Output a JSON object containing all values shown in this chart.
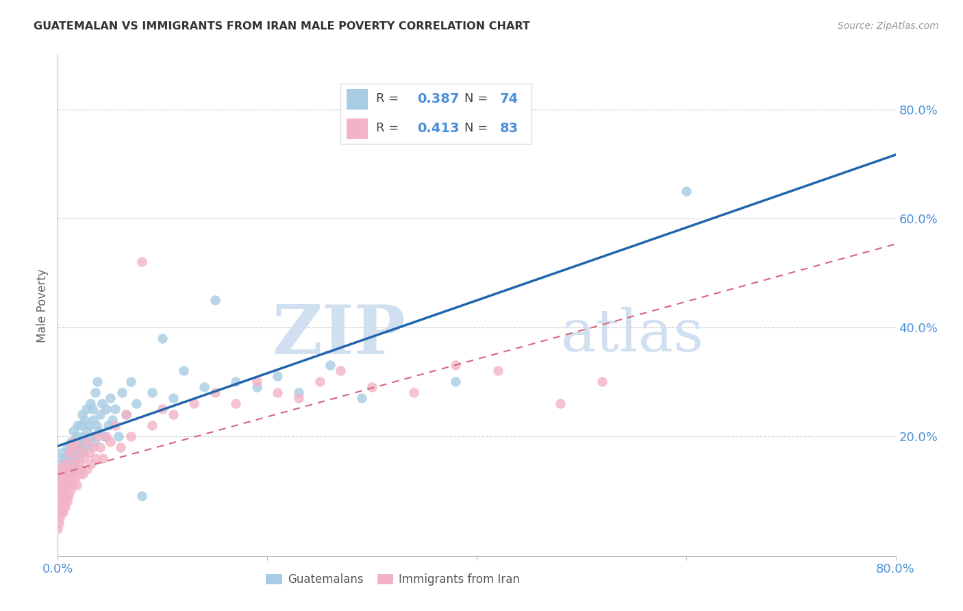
{
  "title": "GUATEMALAN VS IMMIGRANTS FROM IRAN MALE POVERTY CORRELATION CHART",
  "source": "Source: ZipAtlas.com",
  "ylabel": "Male Poverty",
  "y_tick_labels": [
    "80.0%",
    "60.0%",
    "40.0%",
    "20.0%"
  ],
  "y_tick_positions": [
    0.8,
    0.6,
    0.4,
    0.2
  ],
  "xlim": [
    0.0,
    0.8
  ],
  "ylim": [
    -0.02,
    0.9
  ],
  "watermark_zip": "ZIP",
  "watermark_atlas": "atlas",
  "legend_label1": "Guatemalans",
  "legend_label2": "Immigrants from Iran",
  "blue_color": "#a8cce4",
  "pink_color": "#f2b3c6",
  "line_blue": "#2166ac",
  "line_pink": "#d6647a",
  "title_color": "#333333",
  "tick_color": "#4a90d9",
  "grid_color": "#cccccc",
  "background_color": "#ffffff",
  "guatemalan_x": [
    0.001,
    0.002,
    0.003,
    0.004,
    0.005,
    0.005,
    0.006,
    0.007,
    0.008,
    0.009,
    0.01,
    0.01,
    0.011,
    0.012,
    0.013,
    0.013,
    0.014,
    0.015,
    0.015,
    0.016,
    0.017,
    0.018,
    0.018,
    0.019,
    0.02,
    0.02,
    0.021,
    0.022,
    0.023,
    0.023,
    0.024,
    0.025,
    0.026,
    0.027,
    0.028,
    0.029,
    0.03,
    0.031,
    0.032,
    0.033,
    0.034,
    0.035,
    0.036,
    0.037,
    0.038,
    0.039,
    0.04,
    0.042,
    0.044,
    0.046,
    0.048,
    0.05,
    0.052,
    0.055,
    0.058,
    0.061,
    0.065,
    0.07,
    0.075,
    0.08,
    0.09,
    0.1,
    0.11,
    0.12,
    0.14,
    0.15,
    0.17,
    0.19,
    0.21,
    0.23,
    0.26,
    0.29,
    0.38,
    0.6
  ],
  "guatemalan_y": [
    0.14,
    0.12,
    0.17,
    0.15,
    0.13,
    0.16,
    0.14,
    0.12,
    0.15,
    0.18,
    0.14,
    0.17,
    0.13,
    0.16,
    0.15,
    0.19,
    0.14,
    0.17,
    0.21,
    0.16,
    0.18,
    0.14,
    0.2,
    0.22,
    0.16,
    0.19,
    0.18,
    0.22,
    0.17,
    0.24,
    0.2,
    0.23,
    0.19,
    0.25,
    0.21,
    0.18,
    0.22,
    0.26,
    0.2,
    0.25,
    0.23,
    0.19,
    0.28,
    0.22,
    0.3,
    0.21,
    0.24,
    0.26,
    0.2,
    0.25,
    0.22,
    0.27,
    0.23,
    0.25,
    0.2,
    0.28,
    0.24,
    0.3,
    0.26,
    0.09,
    0.28,
    0.38,
    0.27,
    0.32,
    0.29,
    0.45,
    0.3,
    0.29,
    0.31,
    0.28,
    0.33,
    0.27,
    0.3,
    0.65
  ],
  "iran_x": [
    0.0,
    0.0,
    0.001,
    0.001,
    0.001,
    0.002,
    0.002,
    0.002,
    0.002,
    0.003,
    0.003,
    0.003,
    0.004,
    0.004,
    0.004,
    0.005,
    0.005,
    0.005,
    0.006,
    0.006,
    0.006,
    0.007,
    0.007,
    0.007,
    0.008,
    0.008,
    0.009,
    0.009,
    0.01,
    0.01,
    0.011,
    0.011,
    0.012,
    0.012,
    0.013,
    0.013,
    0.014,
    0.015,
    0.015,
    0.016,
    0.017,
    0.018,
    0.018,
    0.019,
    0.02,
    0.021,
    0.022,
    0.023,
    0.024,
    0.025,
    0.027,
    0.028,
    0.03,
    0.032,
    0.034,
    0.036,
    0.038,
    0.04,
    0.043,
    0.046,
    0.05,
    0.055,
    0.06,
    0.065,
    0.07,
    0.08,
    0.09,
    0.1,
    0.11,
    0.13,
    0.15,
    0.17,
    0.19,
    0.21,
    0.23,
    0.25,
    0.27,
    0.3,
    0.34,
    0.38,
    0.42,
    0.48,
    0.52
  ],
  "iran_y": [
    0.03,
    0.06,
    0.04,
    0.07,
    0.1,
    0.05,
    0.08,
    0.11,
    0.14,
    0.06,
    0.09,
    0.12,
    0.07,
    0.1,
    0.13,
    0.06,
    0.09,
    0.12,
    0.08,
    0.11,
    0.15,
    0.07,
    0.1,
    0.14,
    0.09,
    0.13,
    0.08,
    0.12,
    0.09,
    0.14,
    0.11,
    0.17,
    0.1,
    0.15,
    0.12,
    0.18,
    0.11,
    0.13,
    0.19,
    0.12,
    0.14,
    0.11,
    0.16,
    0.18,
    0.13,
    0.15,
    0.14,
    0.17,
    0.13,
    0.16,
    0.19,
    0.14,
    0.17,
    0.15,
    0.18,
    0.16,
    0.2,
    0.18,
    0.16,
    0.2,
    0.19,
    0.22,
    0.18,
    0.24,
    0.2,
    0.52,
    0.22,
    0.25,
    0.24,
    0.26,
    0.28,
    0.26,
    0.3,
    0.28,
    0.27,
    0.3,
    0.32,
    0.29,
    0.28,
    0.33,
    0.32,
    0.26,
    0.3
  ]
}
